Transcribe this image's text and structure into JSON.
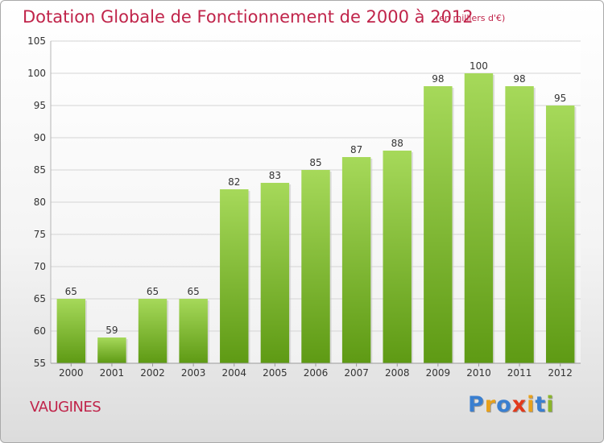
{
  "header": {
    "title": "Dotation Globale de Fonctionnement de 2000 à 2012",
    "subtitle": "(en milliers d'€)"
  },
  "footer": {
    "commune": "VAUGINES",
    "logo_text": "Proxiti"
  },
  "colors": {
    "title": "#c0244a",
    "bar_top": "#a6d95a",
    "bar_bottom": "#5e9a14",
    "grid": "#d4d4d4",
    "axis_text": "#333333",
    "logo_letters": [
      "#3a7fd0",
      "#e8a11c",
      "#3a7fd0",
      "#e23a1c",
      "#e8a11c",
      "#3a7fd0",
      "#8ab52a"
    ]
  },
  "chart_data": {
    "type": "bar",
    "categories": [
      "2000",
      "2001",
      "2002",
      "2003",
      "2004",
      "2005",
      "2006",
      "2007",
      "2008",
      "2009",
      "2010",
      "2011",
      "2012"
    ],
    "values": [
      65,
      59,
      65,
      65,
      82,
      83,
      85,
      87,
      88,
      98,
      100,
      98,
      95
    ],
    "title": "Dotation Globale de Fonctionnement de 2000 à 2012",
    "subtitle": "(en milliers d'€)",
    "ylim": [
      55,
      105
    ],
    "yticks": [
      55,
      60,
      65,
      70,
      75,
      80,
      85,
      90,
      95,
      100,
      105
    ],
    "grid": true,
    "data_labels": true
  }
}
